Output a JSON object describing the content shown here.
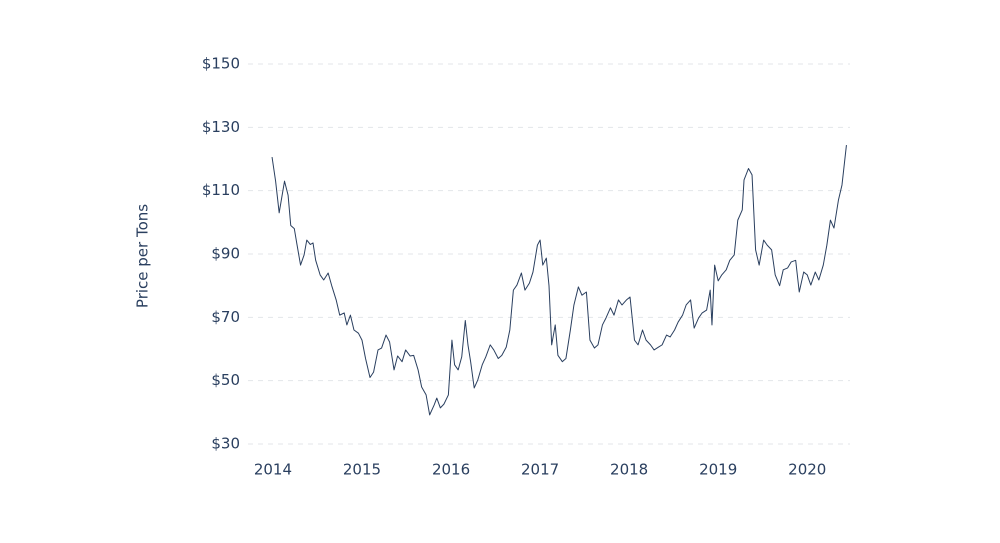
{
  "chart_data": {
    "type": "line",
    "ylabel": "Price per Tons",
    "x": [
      2013.99,
      2014.03,
      2014.07,
      2014.1,
      2014.13,
      2014.17,
      2014.2,
      2014.24,
      2014.27,
      2014.31,
      2014.35,
      2014.38,
      2014.42,
      2014.45,
      2014.48,
      2014.53,
      2014.57,
      2014.62,
      2014.66,
      2014.71,
      2014.75,
      2014.8,
      2014.83,
      2014.87,
      2014.91,
      2014.96,
      2015.0,
      2015.04,
      2015.09,
      2015.13,
      2015.18,
      2015.22,
      2015.27,
      2015.31,
      2015.36,
      2015.4,
      2015.45,
      2015.49,
      2015.54,
      2015.58,
      2015.63,
      2015.67,
      2015.72,
      2015.76,
      2015.81,
      2015.84,
      2015.88,
      2015.92,
      2015.97,
      2016.01,
      2016.04,
      2016.08,
      2016.12,
      2016.16,
      2016.19,
      2016.22,
      2016.26,
      2016.3,
      2016.35,
      2016.39,
      2016.44,
      2016.48,
      2016.53,
      2016.57,
      2016.62,
      2016.66,
      2016.7,
      2016.74,
      2016.79,
      2016.83,
      2016.88,
      2016.92,
      2016.97,
      2017.0,
      2017.03,
      2017.07,
      2017.1,
      2017.13,
      2017.17,
      2017.2,
      2017.25,
      2017.29,
      2017.34,
      2017.38,
      2017.43,
      2017.47,
      2017.52,
      2017.56,
      2017.61,
      2017.65,
      2017.7,
      2017.74,
      2017.79,
      2017.83,
      2017.88,
      2017.92,
      2017.97,
      2018.01,
      2018.06,
      2018.1,
      2018.15,
      2018.19,
      2018.24,
      2018.28,
      2018.33,
      2018.37,
      2018.42,
      2018.46,
      2018.51,
      2018.55,
      2018.6,
      2018.64,
      2018.69,
      2018.73,
      2018.78,
      2018.82,
      2018.87,
      2018.91,
      2018.93,
      2018.96,
      2019.0,
      2019.04,
      2019.09,
      2019.13,
      2019.18,
      2019.22,
      2019.27,
      2019.29,
      2019.34,
      2019.38,
      2019.42,
      2019.46,
      2019.51,
      2019.55,
      2019.6,
      2019.64,
      2019.69,
      2019.73,
      2019.78,
      2019.82,
      2019.87,
      2019.91,
      2019.96,
      2020.0,
      2020.04,
      2020.09,
      2020.13,
      2020.18,
      2020.22,
      2020.26,
      2020.3,
      2020.35,
      2020.39,
      2020.44
    ],
    "series": [
      {
        "color": "#2a3f5f",
        "values": [
          120.6,
          113,
          103,
          108,
          113,
          108.6,
          99,
          98,
          93,
          86.5,
          89.7,
          94.4,
          93,
          93.5,
          88,
          83.4,
          81.8,
          84,
          80,
          75.5,
          70.7,
          71.4,
          67.6,
          70.7,
          66,
          65,
          62.8,
          57,
          51,
          52.7,
          59.7,
          60.3,
          64.4,
          62.2,
          53.4,
          57.8,
          56,
          59.7,
          57.8,
          58,
          53.4,
          48,
          45.5,
          39.2,
          42.3,
          44.5,
          41.4,
          42.6,
          45.5,
          62.8,
          55,
          53.4,
          57.5,
          69,
          61.3,
          56,
          47.7,
          50.2,
          55,
          57.5,
          61.3,
          59.7,
          57,
          58,
          60.6,
          66,
          78.6,
          80.2,
          84,
          78.6,
          80.8,
          84.3,
          92.8,
          94.4,
          86.5,
          88.7,
          80,
          61.3,
          67.6,
          58,
          56,
          57,
          66,
          73.9,
          79.6,
          77,
          78,
          62.8,
          60.3,
          61.3,
          67.6,
          69.8,
          73,
          70.7,
          75.5,
          73.9,
          75.5,
          76.4,
          62.8,
          61.3,
          66,
          62.8,
          61.3,
          59.7,
          60.6,
          61.3,
          64.4,
          63.8,
          66,
          68.5,
          70.7,
          73.9,
          75.5,
          66.6,
          69.8,
          71.4,
          72.3,
          78.6,
          67.6,
          86.5,
          81.5,
          83.4,
          85,
          88,
          89.7,
          100.7,
          103.9,
          113.4,
          117,
          115,
          91.3,
          86.5,
          94.4,
          92.8,
          91.3,
          83.4,
          80,
          85,
          85.6,
          87.5,
          88,
          78,
          84.3,
          83.4,
          80.2,
          84.3,
          81.8,
          86.5,
          92.8,
          100.7,
          98.2,
          107,
          111.8,
          124.4
        ]
      }
    ],
    "xlim": [
      2013.72,
      2020.48
    ],
    "xticks": [
      2014,
      2015,
      2016,
      2017,
      2018,
      2019,
      2020
    ],
    "ylim": [
      30,
      150
    ],
    "yticks": [
      {
        "value": 30,
        "label": "$30"
      },
      {
        "value": 50,
        "label": "$50"
      },
      {
        "value": 70,
        "label": "$70"
      },
      {
        "value": 90,
        "label": "$90"
      },
      {
        "value": 110,
        "label": "$110"
      },
      {
        "value": 130,
        "label": "$130"
      },
      {
        "value": 150,
        "label": "$150"
      }
    ],
    "grid": true
  }
}
